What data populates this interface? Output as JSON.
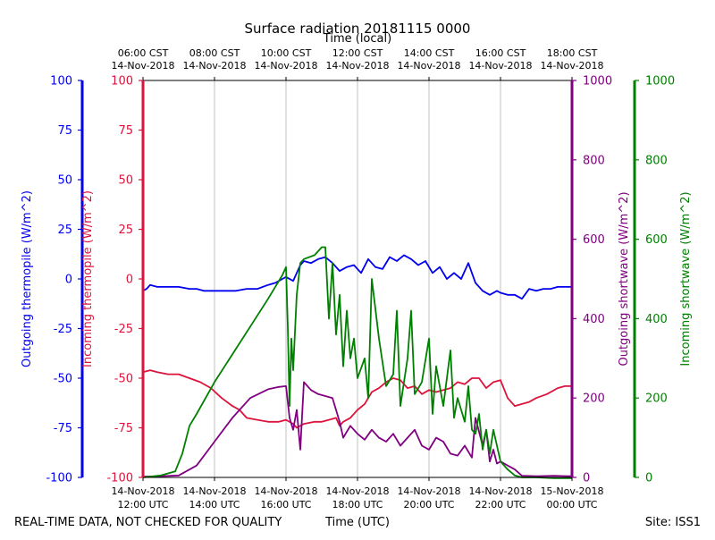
{
  "chart_data": {
    "type": "line",
    "title": "Surface radiation 20181115 0000",
    "top_xlabel": "Time (local)",
    "xlabel": "Time (UTC)",
    "footer_left": "REAL-TIME DATA, NOT CHECKED FOR QUALITY",
    "footer_right": "Site: ISS1",
    "x_range_utc_hours": [
      12,
      24
    ],
    "bottom_ticks": [
      {
        "h": 12,
        "line1": "14-Nov-2018",
        "line2": "12:00 UTC"
      },
      {
        "h": 14,
        "line1": "14-Nov-2018",
        "line2": "14:00 UTC"
      },
      {
        "h": 16,
        "line1": "14-Nov-2018",
        "line2": "16:00 UTC"
      },
      {
        "h": 18,
        "line1": "14-Nov-2018",
        "line2": "18:00 UTC"
      },
      {
        "h": 20,
        "line1": "14-Nov-2018",
        "line2": "20:00 UTC"
      },
      {
        "h": 22,
        "line1": "14-Nov-2018",
        "line2": "22:00 UTC"
      },
      {
        "h": 24,
        "line1": "15-Nov-2018",
        "line2": "00:00 UTC"
      }
    ],
    "top_ticks": [
      {
        "h": 12,
        "line1": "06:00 CST",
        "line2": "14-Nov-2018"
      },
      {
        "h": 14,
        "line1": "08:00 CST",
        "line2": "14-Nov-2018"
      },
      {
        "h": 16,
        "line1": "10:00 CST",
        "line2": "14-Nov-2018"
      },
      {
        "h": 18,
        "line1": "12:00 CST",
        "line2": "14-Nov-2018"
      },
      {
        "h": 20,
        "line1": "14:00 CST",
        "line2": "14-Nov-2018"
      },
      {
        "h": 22,
        "line1": "16:00 CST",
        "line2": "14-Nov-2018"
      },
      {
        "h": 24,
        "line1": "18:00 CST",
        "line2": "14-Nov-2018"
      }
    ],
    "axes": [
      {
        "id": "outgoing_thermopile",
        "label": "Outgoing thermopile (W/m^2)",
        "color": "#0000ee",
        "ylim": [
          -100,
          100
        ],
        "ticks": [
          -100,
          -75,
          -50,
          -25,
          0,
          25,
          50,
          75,
          100
        ]
      },
      {
        "id": "incoming_thermopile",
        "label": "Incoming thermopile (W/m^2)",
        "color": "#dc143c",
        "ylim": [
          -100,
          100
        ],
        "ticks": [
          -100,
          -75,
          -50,
          -25,
          0,
          25,
          50,
          75,
          100
        ]
      },
      {
        "id": "outgoing_shortwave",
        "label": "Outgoing shortwave (W/m^2)",
        "color": "#800080",
        "ylim": [
          0,
          1000
        ],
        "ticks": [
          0,
          200,
          400,
          600,
          800,
          1000
        ]
      },
      {
        "id": "incoming_shortwave",
        "label": "Incoming shortwave (W/m^2)",
        "color": "#008000",
        "ylim": [
          0,
          1000
        ],
        "ticks": [
          0,
          200,
          400,
          600,
          800,
          1000
        ]
      }
    ],
    "series": [
      {
        "name": "Outgoing thermopile",
        "axis": "outgoing_thermopile",
        "color": "#0000ee",
        "x": [
          12.0,
          12.1,
          12.2,
          12.4,
          12.6,
          12.8,
          13.0,
          13.3,
          13.5,
          13.7,
          14.0,
          14.3,
          14.6,
          14.9,
          15.2,
          15.5,
          15.7,
          15.9,
          16.0,
          16.2,
          16.4,
          16.5,
          16.7,
          16.9,
          17.1,
          17.3,
          17.5,
          17.7,
          17.9,
          18.1,
          18.3,
          18.5,
          18.7,
          18.9,
          19.1,
          19.3,
          19.5,
          19.7,
          19.9,
          20.1,
          20.3,
          20.5,
          20.7,
          20.9,
          21.1,
          21.3,
          21.5,
          21.7,
          21.9,
          22.0,
          22.2,
          22.4,
          22.6,
          22.8,
          23.0,
          23.2,
          23.4,
          23.6,
          23.8,
          24.0
        ],
        "values": [
          -6,
          -5,
          -3,
          -4,
          -4,
          -4,
          -4,
          -5,
          -5,
          -6,
          -6,
          -6,
          -6,
          -5,
          -5,
          -3,
          -2,
          0,
          1,
          -1,
          7,
          9,
          8,
          10,
          11,
          8,
          4,
          6,
          7,
          3,
          10,
          6,
          5,
          11,
          9,
          12,
          10,
          7,
          9,
          3,
          6,
          0,
          3,
          0,
          8,
          -2,
          -6,
          -8,
          -6,
          -7,
          -8,
          -8,
          -10,
          -5,
          -6,
          -5,
          -5,
          -4,
          -4,
          -4
        ]
      },
      {
        "name": "Incoming thermopile",
        "axis": "incoming_thermopile",
        "color": "#dc143c",
        "x": [
          12.0,
          12.2,
          12.4,
          12.7,
          13.0,
          13.3,
          13.6,
          13.9,
          14.2,
          14.5,
          14.7,
          14.9,
          15.2,
          15.5,
          15.8,
          16.0,
          16.2,
          16.3,
          16.5,
          16.8,
          17.0,
          17.2,
          17.4,
          17.5,
          17.6,
          17.8,
          18.0,
          18.2,
          18.4,
          18.6,
          18.8,
          19.0,
          19.2,
          19.4,
          19.6,
          19.8,
          20.0,
          20.2,
          20.4,
          20.6,
          20.8,
          21.0,
          21.2,
          21.4,
          21.6,
          21.8,
          22.0,
          22.2,
          22.4,
          22.6,
          22.8,
          23.0,
          23.3,
          23.6,
          23.8,
          24.0
        ],
        "values": [
          -47,
          -46,
          -47,
          -48,
          -48,
          -50,
          -52,
          -55,
          -60,
          -64,
          -66,
          -70,
          -71,
          -72,
          -72,
          -71,
          -73,
          -75,
          -73,
          -72,
          -72,
          -71,
          -70,
          -74,
          -72,
          -70,
          -66,
          -63,
          -57,
          -55,
          -52,
          -50,
          -51,
          -55,
          -54,
          -58,
          -56,
          -57,
          -56,
          -55,
          -52,
          -53,
          -50,
          -50,
          -55,
          -52,
          -51,
          -60,
          -64,
          -63,
          -62,
          -60,
          -58,
          -55,
          -54,
          -54
        ]
      },
      {
        "name": "Outgoing shortwave",
        "axis": "outgoing_shortwave",
        "color": "#800080",
        "x": [
          12.0,
          12.5,
          13.0,
          13.5,
          14.0,
          14.5,
          15.0,
          15.5,
          15.8,
          16.0,
          16.1,
          16.2,
          16.3,
          16.4,
          16.5,
          16.7,
          16.9,
          17.1,
          17.3,
          17.5,
          17.6,
          17.8,
          18.0,
          18.2,
          18.4,
          18.6,
          18.8,
          19.0,
          19.2,
          19.4,
          19.6,
          19.8,
          20.0,
          20.2,
          20.4,
          20.6,
          20.8,
          21.0,
          21.2,
          21.3,
          21.5,
          21.6,
          21.7,
          21.8,
          21.9,
          22.0,
          22.2,
          22.4,
          22.6,
          23.0,
          23.5,
          24.0
        ],
        "values": [
          2,
          3,
          5,
          30,
          90,
          150,
          200,
          222,
          228,
          230,
          150,
          120,
          170,
          70,
          240,
          220,
          210,
          205,
          200,
          140,
          100,
          130,
          110,
          95,
          120,
          100,
          90,
          110,
          80,
          100,
          120,
          80,
          70,
          100,
          90,
          60,
          55,
          80,
          50,
          150,
          80,
          120,
          40,
          70,
          35,
          40,
          30,
          20,
          4,
          3,
          4,
          3
        ]
      },
      {
        "name": "Incoming shortwave",
        "axis": "incoming_shortwave",
        "color": "#008000",
        "x": [
          12.0,
          12.5,
          12.9,
          13.1,
          13.3,
          13.5,
          14.0,
          14.5,
          15.0,
          15.5,
          15.9,
          16.0,
          16.05,
          16.1,
          16.15,
          16.2,
          16.3,
          16.4,
          16.5,
          16.8,
          17.0,
          17.1,
          17.2,
          17.3,
          17.4,
          17.5,
          17.6,
          17.7,
          17.8,
          17.9,
          18.0,
          18.2,
          18.3,
          18.4,
          18.6,
          18.8,
          19.0,
          19.1,
          19.2,
          19.4,
          19.5,
          19.6,
          19.8,
          20.0,
          20.1,
          20.2,
          20.4,
          20.6,
          20.7,
          20.8,
          21.0,
          21.1,
          21.2,
          21.3,
          21.4,
          21.5,
          21.6,
          21.7,
          21.8,
          22.0,
          22.2,
          22.4,
          22.6,
          23.0,
          23.5,
          24.0
        ],
        "values": [
          0,
          5,
          15,
          60,
          130,
          160,
          240,
          310,
          380,
          450,
          510,
          530,
          380,
          180,
          350,
          270,
          460,
          540,
          550,
          560,
          580,
          580,
          400,
          540,
          360,
          460,
          280,
          420,
          300,
          350,
          250,
          300,
          200,
          500,
          350,
          230,
          260,
          420,
          180,
          300,
          420,
          210,
          240,
          350,
          160,
          280,
          180,
          320,
          150,
          200,
          140,
          230,
          120,
          110,
          160,
          70,
          120,
          60,
          120,
          40,
          20,
          5,
          0,
          0,
          -2,
          -2
        ]
      }
    ]
  }
}
